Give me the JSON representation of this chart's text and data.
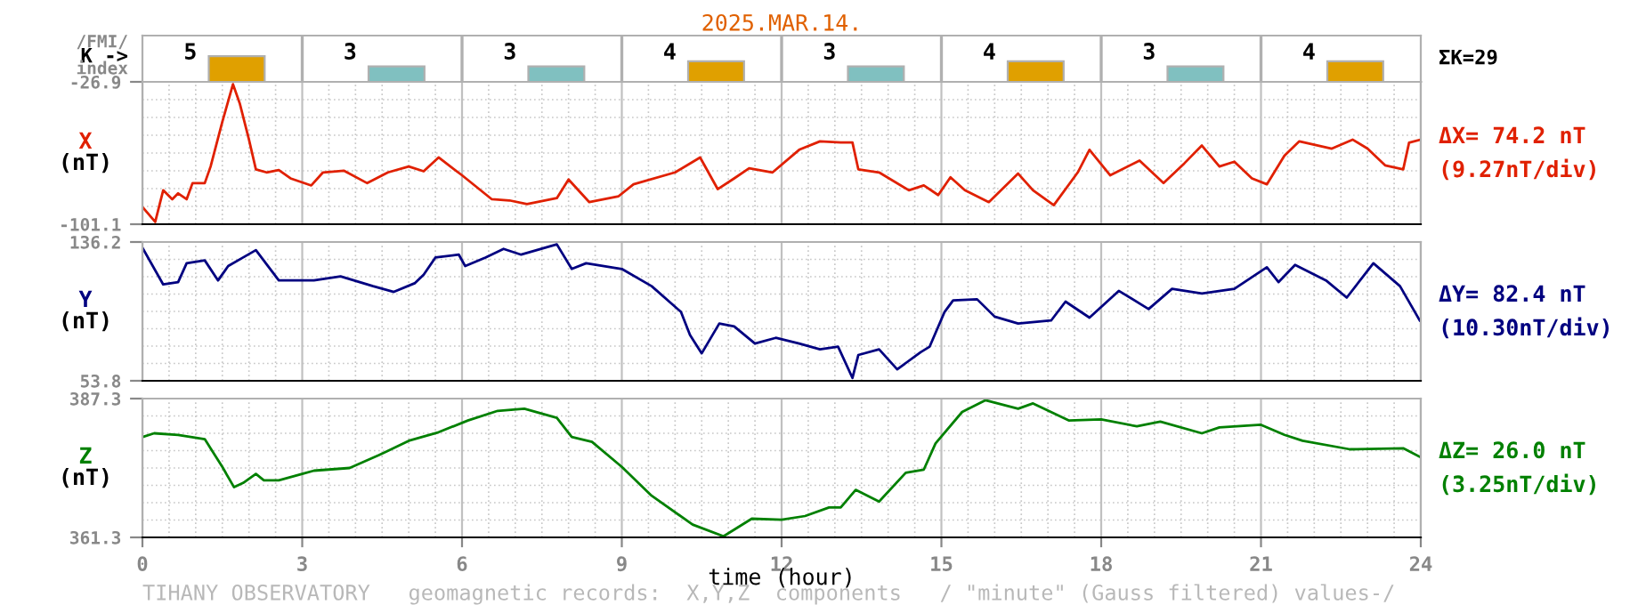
{
  "chart_data": [
    {
      "type": "bar",
      "title": "2025.MAR.14.",
      "ylabel": "K ->",
      "annotations": [
        "/FMI/",
        "index",
        "ΣK=29"
      ],
      "categories": [
        null,
        null,
        null,
        null,
        null,
        null,
        null,
        null
      ],
      "values": [
        5,
        3,
        3,
        4,
        3,
        4,
        3,
        4
      ],
      "colors": [
        "#e0a000",
        "#80c0c0",
        "#80c0c0",
        "#e0a000",
        "#80c0c0",
        "#e0a000",
        "#80c0c0",
        "#e0a000"
      ],
      "data_labels": true,
      "ylim": [
        0,
        9
      ],
      "tick_labels": false
    },
    {
      "type": "line",
      "ylabel": "X\n(nT)",
      "annotations": [
        "ΔX= 74.2 nT",
        "(9.27nT/div)"
      ],
      "x": [
        0,
        0.24,
        0.39,
        0.56,
        0.67,
        0.83,
        0.94,
        1.17,
        1.28,
        1.5,
        1.7,
        1.83,
        2.0,
        2.13,
        2.33,
        2.56,
        2.78,
        3.17,
        3.39,
        3.78,
        4.22,
        4.61,
        5.0,
        5.28,
        5.56,
        6.0,
        6.56,
        6.89,
        7.22,
        7.78,
        8.0,
        8.39,
        8.94,
        9.22,
        10.0,
        10.47,
        10.8,
        11.11,
        11.39,
        11.83,
        12.33,
        12.72,
        13.11,
        13.33,
        13.44,
        13.83,
        14.39,
        14.67,
        14.94,
        15.17,
        15.44,
        15.89,
        16.44,
        16.72,
        17.11,
        17.56,
        17.78,
        18.17,
        18.72,
        19.17,
        19.56,
        19.89,
        20.22,
        20.5,
        20.83,
        21.11,
        21.44,
        21.72,
        22.33,
        22.72,
        23.0,
        23.33,
        23.67,
        23.78,
        24.0
      ],
      "series": [
        {
          "color": "#e02000",
          "values": [
            -92.1,
            -99.9,
            -83.4,
            -88.1,
            -85.0,
            -88.1,
            -79.7,
            -79.7,
            -71.0,
            -47.7,
            -28.1,
            -38.4,
            -57.0,
            -72.5,
            -74.1,
            -72.9,
            -77.2,
            -80.9,
            -74.1,
            -73.2,
            -79.7,
            -74.1,
            -71.0,
            -73.5,
            -66.3,
            -75.6,
            -88.1,
            -88.7,
            -90.6,
            -87.5,
            -77.8,
            -89.6,
            -86.5,
            -80.3,
            -74.1,
            -66.3,
            -82.8,
            -77.2,
            -71.9,
            -74.1,
            -62.3,
            -57.9,
            -58.5,
            -58.5,
            -72.5,
            -74.1,
            -83.4,
            -80.9,
            -85.9,
            -76.6,
            -83.4,
            -89.6,
            -74.7,
            -83.4,
            -91.2,
            -74.1,
            -62.3,
            -75.6,
            -67.9,
            -79.7,
            -69.4,
            -60.1,
            -71.0,
            -68.5,
            -77.2,
            -80.3,
            -65.4,
            -57.9,
            -61.7,
            -57.0,
            -61.7,
            -70.4,
            -72.5,
            -58.6,
            -57.0
          ]
        }
      ],
      "xlim": [
        0,
        24
      ],
      "xticks": [
        0,
        3,
        6,
        9,
        12,
        15,
        18,
        21,
        24
      ],
      "ylim": [
        -101.1,
        -26.9
      ],
      "yticks": [
        -101.1,
        -26.9
      ],
      "grid": true,
      "tick_labels": "y"
    },
    {
      "type": "line",
      "ylabel": "Y\n(nT)",
      "annotations": [
        "ΔY= 82.4 nT",
        "(10.30nT/div)"
      ],
      "x": [
        0,
        0.39,
        0.67,
        0.83,
        1.17,
        1.42,
        1.61,
        1.89,
        2.13,
        2.56,
        3.22,
        3.72,
        4.33,
        4.72,
        5.11,
        5.28,
        5.5,
        5.94,
        6.06,
        6.44,
        6.78,
        7.11,
        7.78,
        8.06,
        8.33,
        9.0,
        9.56,
        10.11,
        10.28,
        10.5,
        10.83,
        11.11,
        11.5,
        11.89,
        12.33,
        12.72,
        13.06,
        13.33,
        13.44,
        13.83,
        14.17,
        14.61,
        14.78,
        15.06,
        15.22,
        15.67,
        16.0,
        16.44,
        17.06,
        17.33,
        17.78,
        18.33,
        18.89,
        19.33,
        19.89,
        20.5,
        21.11,
        21.33,
        21.64,
        22.22,
        22.61,
        23.11,
        23.61,
        23.98
      ],
      "series": [
        {
          "color": "#000080",
          "values": [
            132.8,
            111.0,
            112.4,
            123.6,
            125.3,
            113.4,
            121.9,
            127.0,
            131.4,
            113.4,
            113.4,
            115.8,
            110.0,
            106.6,
            111.7,
            116.8,
            127.0,
            128.7,
            121.9,
            127.0,
            132.1,
            128.7,
            134.8,
            120.2,
            123.6,
            120.2,
            110.0,
            94.7,
            81.0,
            70.1,
            87.8,
            86.1,
            75.9,
            79.3,
            75.9,
            72.5,
            74.1,
            55.5,
            69.1,
            72.5,
            60.6,
            70.8,
            74.1,
            94.7,
            101.5,
            102.2,
            91.9,
            87.8,
            89.6,
            100.8,
            91.3,
            107.2,
            96.4,
            108.4,
            105.6,
            108.4,
            121.2,
            112.4,
            122.6,
            113.4,
            103.2,
            123.6,
            110.0,
            89.6
          ]
        }
      ],
      "xlim": [
        0,
        24
      ],
      "xticks": [
        0,
        3,
        6,
        9,
        12,
        15,
        18,
        21,
        24
      ],
      "ylim": [
        53.8,
        136.2
      ],
      "yticks": [
        53.8,
        136.2
      ],
      "grid": true,
      "tick_labels": "y"
    },
    {
      "type": "line",
      "ylabel": "Z\n(nT)",
      "xlabel": "time (hour)",
      "annotations": [
        "ΔZ= 26.0 nT",
        "(3.25nT/div)",
        "TIHANY OBSERVATORY   geomagnetic records:  X,Y,Z  components   / \"minute\" (Gauss filtered) values-/"
      ],
      "x": [
        0,
        0.22,
        0.67,
        1.17,
        1.5,
        1.72,
        1.89,
        2.13,
        2.28,
        2.56,
        3.0,
        3.22,
        3.89,
        4.44,
        5.0,
        5.56,
        6.11,
        6.67,
        7.17,
        7.78,
        8.06,
        8.44,
        9.0,
        9.56,
        10.33,
        10.91,
        11.44,
        12.0,
        12.44,
        12.89,
        13.11,
        13.39,
        13.83,
        14.33,
        14.67,
        14.89,
        15.39,
        15.83,
        16.44,
        16.72,
        17.39,
        18.0,
        18.67,
        19.11,
        19.89,
        20.22,
        21.0,
        21.44,
        21.78,
        22.67,
        23.67,
        23.98
      ],
      "series": [
        {
          "color": "#008000",
          "values": [
            380.1,
            380.8,
            380.5,
            379.7,
            374.5,
            370.7,
            371.5,
            373.2,
            372.0,
            372.0,
            373.2,
            373.8,
            374.3,
            376.7,
            379.4,
            381.0,
            383.2,
            385.0,
            385.4,
            383.7,
            380.1,
            379.2,
            374.5,
            369.1,
            363.7,
            361.5,
            364.8,
            364.6,
            365.3,
            366.9,
            366.9,
            370.2,
            368.0,
            373.4,
            374.0,
            378.9,
            384.8,
            387.0,
            385.4,
            386.4,
            383.2,
            383.4,
            382.1,
            383.0,
            380.8,
            381.9,
            382.4,
            380.5,
            379.4,
            377.8,
            378.0,
            376.4
          ]
        }
      ],
      "xlim": [
        0,
        24
      ],
      "xticks": [
        0,
        3,
        6,
        9,
        12,
        15,
        18,
        21,
        24
      ],
      "ylim": [
        361.3,
        387.3
      ],
      "yticks": [
        361.3,
        387.3
      ],
      "grid": true
    }
  ]
}
